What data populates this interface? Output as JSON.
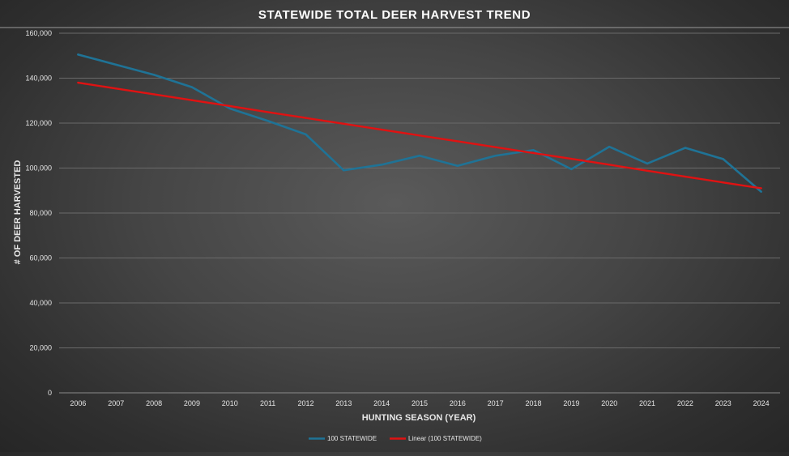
{
  "chart_data": {
    "type": "line",
    "title": "STATEWIDE TOTAL DEER HARVEST TREND",
    "xlabel": "HUNTING SEASON (YEAR)",
    "ylabel": "# OF DEER HARVESTED",
    "ylim": [
      0,
      160000
    ],
    "yticks": [
      0,
      20000,
      40000,
      60000,
      80000,
      100000,
      120000,
      140000,
      160000
    ],
    "ytick_labels": [
      "0",
      "20,000",
      "40,000",
      "60,000",
      "80,000",
      "100,000",
      "120,000",
      "140,000",
      "160,000"
    ],
    "categories": [
      "2006",
      "2007",
      "2008",
      "2009",
      "2010",
      "2011",
      "2012",
      "2013",
      "2014",
      "2015",
      "2016",
      "2017",
      "2018",
      "2019",
      "2020",
      "2021",
      "2022",
      "2023",
      "2024"
    ],
    "grid": true,
    "legend_position": "bottom",
    "series": [
      {
        "name": "100 STATEWIDE",
        "color": "#1f7396",
        "values": [
          150500,
          146000,
          141500,
          136000,
          126500,
          121000,
          115000,
          99000,
          101500,
          105500,
          101000,
          105500,
          108000,
          99500,
          109500,
          102000,
          109000,
          104000,
          89500
        ]
      },
      {
        "name": "Linear (100 STATEWIDE)",
        "color": "#e01212",
        "trendline_of": "100 STATEWIDE",
        "values": [
          138000,
          135400,
          132800,
          130200,
          127600,
          124900,
          122300,
          119700,
          117100,
          114500,
          111900,
          109300,
          106700,
          104100,
          101500,
          98800,
          96200,
          93600,
          91000
        ]
      }
    ]
  }
}
